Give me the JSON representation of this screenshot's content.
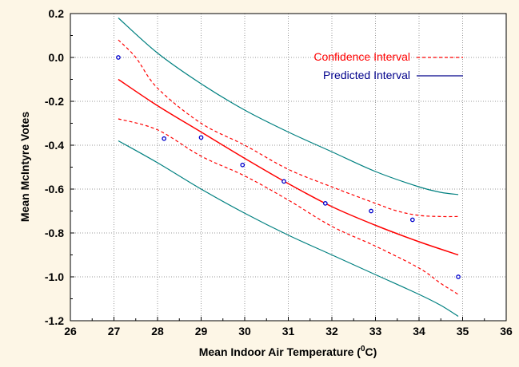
{
  "chart_data": {
    "type": "line",
    "title": "",
    "xlabel": "Mean Indoor Air Temperature (",
    "xlabel_sup": "0",
    "xlabel_suffix": "C)",
    "ylabel": "Mean McIntyre Votes",
    "xlim": [
      26,
      36
    ],
    "ylim": [
      -1.2,
      0.2
    ],
    "x_ticks": [
      26,
      27,
      28,
      29,
      30,
      31,
      32,
      33,
      34,
      35,
      36
    ],
    "y_ticks": [
      -1.2,
      -1.0,
      -0.8,
      -0.6,
      -0.4,
      -0.2,
      0.0,
      0.2
    ],
    "y_tick_labels": [
      "-1.2",
      "-1.0",
      "-0.8",
      "-0.6",
      "-0.4",
      "-0.2",
      "0.0",
      "0.2"
    ],
    "grid": true,
    "legend_position": "top-right",
    "legend": [
      {
        "label": "Confidence Interval",
        "color": "#ff0000",
        "style": "dashed"
      },
      {
        "label": "Predicted Interval",
        "color": "#00008b",
        "style": "solid"
      }
    ],
    "colors": {
      "fit": "#ff0000",
      "confidence": "#ff0000",
      "prediction": "#008080",
      "points": "#0000cc",
      "legend_solid": "#00008b"
    },
    "points": {
      "x": [
        27.1,
        28.15,
        29.0,
        29.95,
        30.9,
        31.85,
        32.9,
        33.85,
        34.9
      ],
      "y": [
        0.0,
        -0.37,
        -0.365,
        -0.49,
        -0.565,
        -0.665,
        -0.7,
        -0.74,
        -1.0
      ]
    },
    "fit_line": {
      "x": [
        27.1,
        28,
        29,
        30,
        31,
        32,
        33,
        34,
        34.9
      ],
      "y": [
        -0.1,
        -0.22,
        -0.34,
        -0.46,
        -0.575,
        -0.68,
        -0.765,
        -0.84,
        -0.9
      ]
    },
    "confidence_upper": {
      "x": [
        27.1,
        27.5,
        28,
        29,
        30,
        31,
        32,
        33,
        33.5,
        34,
        34.5,
        34.9
      ],
      "y": [
        0.08,
        0.0,
        -0.14,
        -0.3,
        -0.4,
        -0.51,
        -0.59,
        -0.665,
        -0.7,
        -0.72,
        -0.725,
        -0.725
      ]
    },
    "confidence_lower": {
      "x": [
        27.1,
        28,
        29,
        30,
        31,
        32,
        33,
        34,
        34.5,
        34.9
      ],
      "y": [
        -0.28,
        -0.33,
        -0.45,
        -0.54,
        -0.65,
        -0.77,
        -0.86,
        -0.96,
        -1.03,
        -1.08
      ]
    },
    "prediction_upper": {
      "x": [
        27.1,
        28,
        29,
        30,
        31,
        32,
        33,
        34,
        34.5,
        34.9
      ],
      "y": [
        0.18,
        0.02,
        -0.12,
        -0.24,
        -0.34,
        -0.43,
        -0.52,
        -0.59,
        -0.615,
        -0.625
      ]
    },
    "prediction_lower": {
      "x": [
        27.1,
        28,
        29,
        30,
        31,
        32,
        33,
        34,
        34.5,
        34.9
      ],
      "y": [
        -0.38,
        -0.48,
        -0.6,
        -0.71,
        -0.81,
        -0.9,
        -0.99,
        -1.08,
        -1.13,
        -1.18
      ]
    }
  }
}
